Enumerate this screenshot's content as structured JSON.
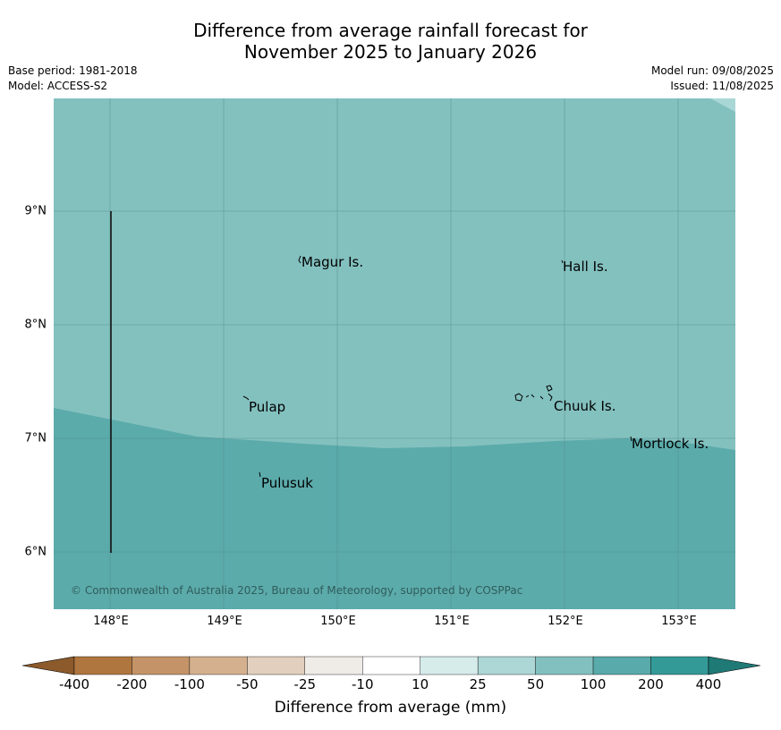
{
  "title_line1": "Difference from average rainfall forecast for",
  "title_line2": "November 2025 to January 2026",
  "base_period": "Base period: 1981-2018",
  "model": "Model: ACCESS-S2",
  "model_run": "Model run: 09/08/2025",
  "issued": "Issued: 11/08/2025",
  "lat_labels": [
    "9°N",
    "8°N",
    "7°N",
    "6°N"
  ],
  "lon_labels": [
    "148°E",
    "149°E",
    "150°E",
    "151°E",
    "152°E",
    "153°E"
  ],
  "places": {
    "magur": "Magur Is.",
    "hall": "Hall Is.",
    "pulap": "Pulap",
    "chuuk": "Chuuk Is.",
    "mortlock": "Mortlock Is.",
    "pulusuk": "Pulusuk"
  },
  "copyright": "© Commonwealth of Australia 2025, Bureau of Meteorology, supported by COSPPac",
  "colorbar": {
    "title": "Difference from average (mm)",
    "ticks": [
      "-400",
      "-200",
      "-100",
      "-50",
      "-25",
      "-10",
      "10",
      "25",
      "50",
      "100",
      "200",
      "400"
    ],
    "colors": [
      "#b07640",
      "#c49468",
      "#d4b08e",
      "#e2cfbe",
      "#efebe6",
      "#ffffff",
      "#d6eceb",
      "#acd7d6",
      "#82c0bf",
      "#59aaaa",
      "#349a98"
    ],
    "low_extend_color": "#8c5a2b",
    "high_extend_color": "#1f7a76"
  },
  "map_colors": {
    "band_50_100": "#83c1bf",
    "band_100_200": "#5cabab",
    "band_25_50": "#a9d7d6",
    "gridline": "#4f8a88"
  }
}
